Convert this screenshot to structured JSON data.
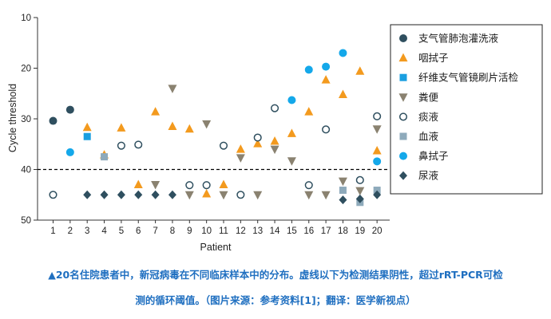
{
  "chart_data": {
    "type": "scatter",
    "xlabel": "Patient",
    "ylabel": "Cycle threshold",
    "ylim": [
      10,
      50
    ],
    "y_inverted": true,
    "y_ticks": [
      10,
      20,
      30,
      40,
      50
    ],
    "x_ticks": [
      1,
      2,
      3,
      4,
      5,
      6,
      7,
      8,
      9,
      10,
      11,
      12,
      13,
      14,
      15,
      16,
      17,
      18,
      19,
      20
    ],
    "xlim": [
      0.3,
      20.3
    ],
    "threshold_line": 40,
    "legend_position": "right",
    "series": [
      {
        "name": "支气管肺泡灌洗液",
        "marker": "circle-filled",
        "color": "#2f4f5f",
        "points": [
          [
            1,
            30.4
          ],
          [
            2,
            28.2
          ]
        ]
      },
      {
        "name": "咽拭子",
        "marker": "triangle-up",
        "color": "#f39a1e",
        "points": [
          [
            3,
            31.7
          ],
          [
            4,
            37.1
          ],
          [
            5,
            31.8
          ],
          [
            6,
            43.0
          ],
          [
            7,
            28.6
          ],
          [
            8,
            31.5
          ],
          [
            9,
            32.0
          ],
          [
            10,
            44.8
          ],
          [
            11,
            43.0
          ],
          [
            12,
            36.0
          ],
          [
            13,
            34.9
          ],
          [
            14,
            34.4
          ],
          [
            15,
            32.9
          ],
          [
            16,
            28.6
          ],
          [
            17,
            22.3
          ],
          [
            18,
            25.2
          ],
          [
            19,
            20.6
          ],
          [
            20,
            36.3
          ]
        ]
      },
      {
        "name": "纤维支气管镜刷片活检",
        "marker": "square",
        "color": "#1a9fe0",
        "points": [
          [
            3,
            33.5
          ]
        ]
      },
      {
        "name": "粪便",
        "marker": "triangle-down",
        "color": "#8a8270",
        "points": [
          [
            7,
            43.0
          ],
          [
            8,
            24.0
          ],
          [
            9,
            45.0
          ],
          [
            10,
            31.0
          ],
          [
            11,
            45.0
          ],
          [
            12,
            37.7
          ],
          [
            13,
            45.0
          ],
          [
            14,
            36.0
          ],
          [
            15,
            38.3
          ],
          [
            16,
            45.0
          ],
          [
            17,
            45.0
          ],
          [
            18,
            42.3
          ],
          [
            19,
            44.2
          ],
          [
            20,
            32.0
          ]
        ]
      },
      {
        "name": "痰液",
        "marker": "circle-open",
        "color": "#2f4f5f",
        "points": [
          [
            1,
            45.0
          ],
          [
            5,
            35.3
          ],
          [
            6,
            35.1
          ],
          [
            9,
            43.1
          ],
          [
            10,
            43.1
          ],
          [
            11,
            35.3
          ],
          [
            12,
            45.0
          ],
          [
            13,
            33.7
          ],
          [
            14,
            27.9
          ],
          [
            16,
            43.1
          ],
          [
            17,
            32.1
          ],
          [
            19,
            42.1
          ],
          [
            20,
            29.5
          ]
        ]
      },
      {
        "name": "血液",
        "marker": "square",
        "color": "#8eaabb",
        "points": [
          [
            4,
            37.5
          ],
          [
            18,
            44.1
          ],
          [
            19,
            46.5
          ],
          [
            20,
            44.1
          ]
        ]
      },
      {
        "name": "鼻拭子",
        "marker": "circle-filled",
        "color": "#14a8ea",
        "points": [
          [
            2,
            36.6
          ],
          [
            15,
            26.3
          ],
          [
            16,
            20.3
          ],
          [
            17,
            19.7
          ],
          [
            18,
            17.0
          ],
          [
            20,
            38.4
          ]
        ]
      },
      {
        "name": "尿液",
        "marker": "diamond",
        "color": "#2f4f5f",
        "points": [
          [
            3,
            45.0
          ],
          [
            4,
            45.0
          ],
          [
            5,
            45.0
          ],
          [
            6,
            45.0
          ],
          [
            7,
            45.0
          ],
          [
            8,
            45.0
          ],
          [
            18,
            46.0
          ],
          [
            19,
            45.8
          ],
          [
            20,
            45.0
          ]
        ]
      }
    ]
  },
  "caption": {
    "line1": "▲20名住院患者中，新冠病毒在不同临床样本中的分布。虚线以下为检测结果阴性，超过rRT-PCR可检",
    "line2": "测的循环阈值。（图片来源：参考资料[1]；翻译：医学新视点）"
  }
}
